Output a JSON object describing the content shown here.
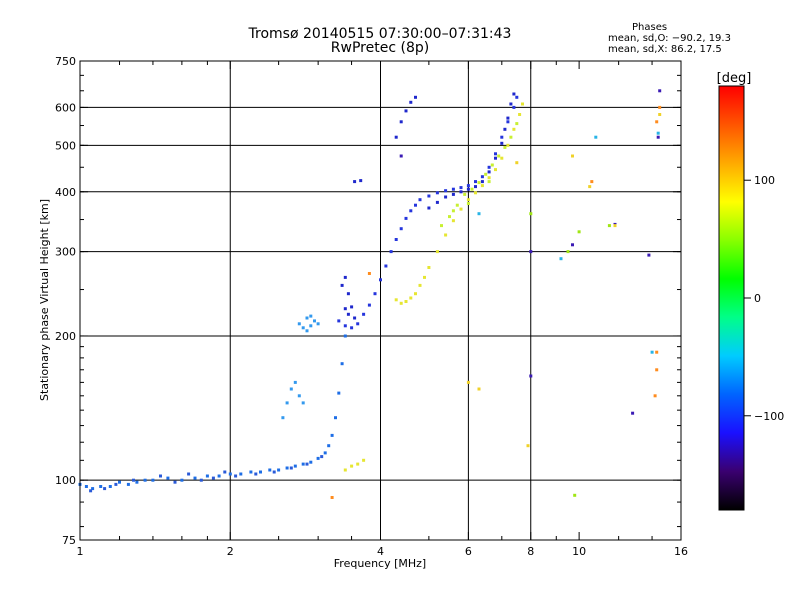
{
  "header": {
    "title_line1": "Tromsø 20140515 07:30:00–07:31:43",
    "title_line2": "RwPretec (8p)",
    "phases_heading": "Phases",
    "phases_o": "mean, sd,O: −90.2, 19.3",
    "phases_x": "mean, sd,X:  86.2, 17.5"
  },
  "chart_data": {
    "type": "scatter",
    "title": "Tromsø 20140515 07:30:00–07:31:43",
    "subtitle": "RwPretec (8p)",
    "xlabel": "Frequency [MHz]",
    "ylabel": "Stationary phase Virtual Height [km]",
    "x_scale": "log",
    "y_scale": "log",
    "xlim": [
      1,
      16
    ],
    "ylim": [
      75,
      750
    ],
    "x_ticks": [
      1,
      2,
      4,
      6,
      8,
      10,
      16
    ],
    "x_tick_labels": [
      "1",
      "2",
      "4",
      "6",
      "8",
      "10",
      "16"
    ],
    "x_grid": [
      2,
      4,
      6,
      8
    ],
    "y_ticks": [
      75,
      100,
      200,
      300,
      400,
      500,
      600,
      750
    ],
    "y_tick_labels": [
      "75",
      "100",
      "200",
      "300",
      "400",
      "500",
      "600",
      "750"
    ],
    "y_grid": [
      100,
      200,
      300,
      400,
      500,
      600
    ],
    "grid": true,
    "colorbar": {
      "label": "[deg]",
      "range": [
        -180,
        180
      ],
      "ticks": [
        100,
        0,
        -100
      ],
      "tick_labels": [
        "100",
        "0",
        "−100"
      ],
      "colors": [
        "#000000",
        "#3a0070",
        "#1a10ff",
        "#0064ff",
        "#00ccff",
        "#00ff88",
        "#00ff00",
        "#88ff00",
        "#ffff00",
        "#ffaa00",
        "#ff5500",
        "#ff0000"
      ]
    },
    "series": [
      {
        "phase_deg": -110,
        "color": "#1e6ee6",
        "points": [
          [
            1.0,
            98
          ],
          [
            1.03,
            97
          ],
          [
            1.06,
            96
          ],
          [
            1.1,
            97
          ],
          [
            1.15,
            97
          ],
          [
            1.2,
            99
          ],
          [
            1.25,
            98
          ],
          [
            1.3,
            99
          ],
          [
            1.35,
            100
          ],
          [
            1.4,
            100
          ],
          [
            1.5,
            101
          ],
          [
            1.6,
            100
          ],
          [
            1.7,
            101
          ],
          [
            1.8,
            102
          ],
          [
            1.9,
            102
          ],
          [
            2.0,
            103
          ],
          [
            2.1,
            103
          ],
          [
            2.2,
            104
          ],
          [
            2.3,
            104
          ],
          [
            2.4,
            105
          ],
          [
            2.5,
            105
          ],
          [
            2.6,
            106
          ],
          [
            2.7,
            107
          ],
          [
            2.8,
            108
          ],
          [
            2.9,
            109
          ],
          [
            3.0,
            111
          ],
          [
            3.1,
            114
          ],
          [
            3.15,
            118
          ],
          [
            3.2,
            124
          ],
          [
            3.25,
            135
          ],
          [
            3.3,
            152
          ],
          [
            3.35,
            175
          ],
          [
            3.4,
            200
          ]
        ]
      },
      {
        "phase_deg": -115,
        "color": "#2a5ad8",
        "points": [
          [
            1.05,
            95
          ],
          [
            1.12,
            96
          ],
          [
            1.18,
            98
          ],
          [
            1.28,
            100
          ],
          [
            1.45,
            102
          ],
          [
            1.55,
            99
          ],
          [
            1.65,
            103
          ],
          [
            1.75,
            100
          ],
          [
            1.85,
            101
          ],
          [
            1.95,
            104
          ],
          [
            2.05,
            102
          ],
          [
            2.25,
            103
          ],
          [
            2.45,
            104
          ],
          [
            2.65,
            106
          ],
          [
            2.85,
            108
          ],
          [
            3.05,
            112
          ]
        ]
      },
      {
        "phase_deg": -90,
        "color": "#3399ee",
        "points": [
          [
            2.55,
            135
          ],
          [
            2.6,
            145
          ],
          [
            2.65,
            155
          ],
          [
            2.7,
            160
          ],
          [
            2.75,
            150
          ],
          [
            2.8,
            145
          ],
          [
            2.75,
            212
          ],
          [
            2.8,
            208
          ],
          [
            2.85,
            205
          ],
          [
            2.9,
            210
          ],
          [
            2.95,
            215
          ],
          [
            3.0,
            212
          ],
          [
            2.85,
            218
          ],
          [
            2.9,
            220
          ]
        ]
      },
      {
        "phase_deg": -118,
        "color": "#2535dd",
        "points": [
          [
            3.3,
            215
          ],
          [
            3.4,
            210
          ],
          [
            3.5,
            208
          ],
          [
            3.6,
            212
          ],
          [
            3.7,
            222
          ],
          [
            3.8,
            232
          ],
          [
            3.9,
            245
          ],
          [
            4.0,
            262
          ],
          [
            4.1,
            280
          ],
          [
            4.2,
            300
          ],
          [
            4.3,
            318
          ],
          [
            4.4,
            335
          ],
          [
            4.5,
            352
          ],
          [
            4.6,
            365
          ],
          [
            4.7,
            375
          ],
          [
            4.8,
            385
          ],
          [
            5.0,
            392
          ],
          [
            5.2,
            398
          ],
          [
            5.4,
            402
          ],
          [
            5.6,
            405
          ],
          [
            5.8,
            408
          ],
          [
            6.0,
            412
          ],
          [
            6.2,
            420
          ],
          [
            6.4,
            430
          ],
          [
            6.6,
            450
          ],
          [
            6.8,
            480
          ],
          [
            7.0,
            520
          ],
          [
            7.2,
            560
          ],
          [
            7.4,
            600
          ],
          [
            7.5,
            630
          ]
        ]
      },
      {
        "phase_deg": -122,
        "color": "#1f28cc",
        "points": [
          [
            3.35,
            255
          ],
          [
            3.4,
            265
          ],
          [
            3.45,
            245
          ],
          [
            3.5,
            230
          ],
          [
            3.55,
            218
          ],
          [
            3.4,
            228
          ],
          [
            3.45,
            222
          ],
          [
            5.0,
            370
          ],
          [
            5.2,
            380
          ],
          [
            5.4,
            390
          ],
          [
            5.6,
            395
          ],
          [
            5.8,
            400
          ],
          [
            6.0,
            405
          ],
          [
            6.2,
            410
          ],
          [
            6.4,
            420
          ],
          [
            6.6,
            440
          ],
          [
            6.8,
            470
          ],
          [
            7.0,
            505
          ],
          [
            7.1,
            540
          ],
          [
            7.2,
            570
          ],
          [
            7.3,
            610
          ],
          [
            7.4,
            640
          ],
          [
            3.55,
            420
          ],
          [
            3.65,
            422
          ],
          [
            4.4,
            560
          ],
          [
            4.5,
            590
          ],
          [
            4.6,
            615
          ],
          [
            4.7,
            630
          ],
          [
            4.3,
            520
          ]
        ]
      },
      {
        "phase_deg": 105,
        "color": "#e6e632",
        "points": [
          [
            3.4,
            105
          ],
          [
            3.5,
            107
          ],
          [
            3.6,
            108
          ],
          [
            3.7,
            110
          ],
          [
            4.3,
            238
          ],
          [
            4.4,
            234
          ],
          [
            4.5,
            236
          ],
          [
            4.6,
            240
          ],
          [
            4.7,
            245
          ],
          [
            4.8,
            255
          ],
          [
            4.9,
            265
          ],
          [
            5.0,
            278
          ],
          [
            5.2,
            300
          ],
          [
            5.4,
            325
          ],
          [
            5.6,
            348
          ],
          [
            5.8,
            368
          ],
          [
            6.0,
            385
          ],
          [
            6.2,
            398
          ],
          [
            6.4,
            412
          ],
          [
            6.6,
            428
          ],
          [
            6.8,
            445
          ],
          [
            7.0,
            470
          ],
          [
            7.2,
            500
          ],
          [
            7.4,
            540
          ],
          [
            7.6,
            580
          ],
          [
            7.7,
            610
          ]
        ]
      },
      {
        "phase_deg": 90,
        "color": "#c8f032",
        "points": [
          [
            5.3,
            340
          ],
          [
            5.5,
            355
          ],
          [
            5.7,
            375
          ],
          [
            5.9,
            395
          ],
          [
            6.1,
            405
          ],
          [
            6.3,
            418
          ],
          [
            6.5,
            435
          ],
          [
            6.7,
            455
          ],
          [
            6.9,
            475
          ],
          [
            7.1,
            495
          ],
          [
            7.3,
            520
          ],
          [
            7.5,
            555
          ],
          [
            5.6,
            365
          ],
          [
            6.0,
            378
          ],
          [
            6.6,
            420
          ]
        ]
      },
      {
        "phase_deg": 140,
        "color": "#ff8c1e",
        "points": [
          [
            3.2,
            92
          ],
          [
            3.8,
            270
          ],
          [
            10.6,
            420
          ],
          [
            14.3,
            185
          ],
          [
            14.3,
            170
          ],
          [
            14.2,
            150
          ],
          [
            14.5,
            600
          ],
          [
            14.3,
            560
          ]
        ]
      },
      {
        "phase_deg": 60,
        "color": "#a0e614",
        "points": [
          [
            9.8,
            93
          ],
          [
            8.0,
            360
          ],
          [
            9.5,
            300
          ],
          [
            10.0,
            330
          ],
          [
            11.5,
            340
          ]
        ]
      },
      {
        "phase_deg": -60,
        "color": "#28b4e6",
        "points": [
          [
            9.2,
            290
          ],
          [
            6.3,
            360
          ],
          [
            10.8,
            520
          ],
          [
            14.0,
            185
          ],
          [
            14.4,
            530
          ]
        ]
      },
      {
        "phase_deg": -140,
        "color": "#3a1ab4",
        "points": [
          [
            4.4,
            475
          ],
          [
            8.0,
            300
          ],
          [
            8.0,
            165
          ],
          [
            9.7,
            310
          ],
          [
            11.8,
            342
          ],
          [
            12.8,
            138
          ],
          [
            13.8,
            295
          ],
          [
            14.5,
            650
          ],
          [
            14.4,
            520
          ]
        ]
      },
      {
        "phase_deg": 125,
        "color": "#f0d228",
        "points": [
          [
            6.0,
            160
          ],
          [
            7.9,
            118
          ],
          [
            7.5,
            460
          ],
          [
            9.7,
            475
          ],
          [
            10.5,
            410
          ],
          [
            11.8,
            340
          ],
          [
            14.5,
            580
          ],
          [
            6.3,
            155
          ]
        ]
      }
    ]
  }
}
